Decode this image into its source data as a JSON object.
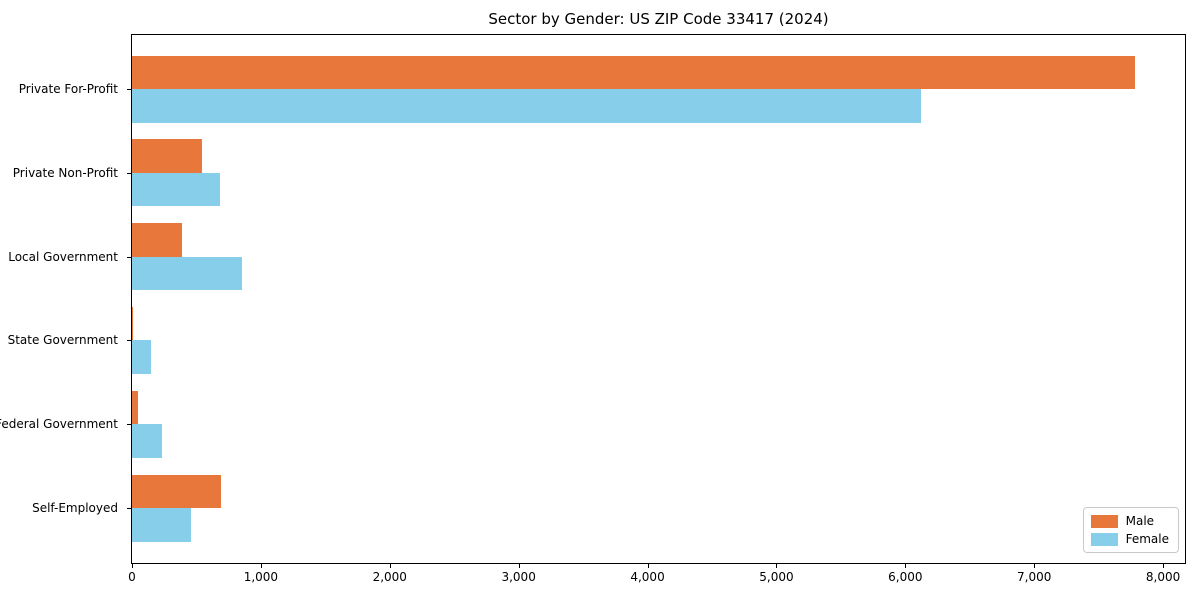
{
  "title": "Sector by Gender: US ZIP Code 33417 (2024)",
  "chart_data": {
    "type": "bar",
    "orientation": "horizontal",
    "title": "Sector by Gender: US ZIP Code 33417 (2024)",
    "categories": [
      "Private For-Profit",
      "Private Non-Profit",
      "Local Government",
      "State Government",
      "Federal Government",
      "Self-Employed"
    ],
    "series": [
      {
        "name": "Male",
        "color": "#E8773B",
        "values": [
          7780,
          545,
          390,
          10,
          45,
          690
        ]
      },
      {
        "name": "Female",
        "color": "#87CEEB",
        "values": [
          6120,
          685,
          850,
          150,
          230,
          460
        ]
      }
    ],
    "xlabel": "",
    "ylabel": "",
    "xlim": [
      0,
      8170
    ],
    "xticks": [
      0,
      1000,
      2000,
      3000,
      4000,
      5000,
      6000,
      7000,
      8000
    ],
    "xtick_labels": [
      "0",
      "1,000",
      "2,000",
      "3,000",
      "4,000",
      "5,000",
      "6,000",
      "7,000",
      "8,000"
    ],
    "grid": false,
    "legend_position": "lower right"
  }
}
